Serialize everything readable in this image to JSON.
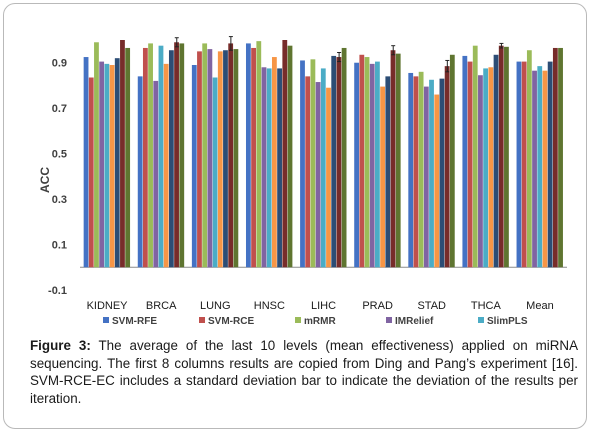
{
  "caption": {
    "label": "Figure 3:",
    "text": "The average of the last 10 levels (mean effectiveness) applied on miRNA sequencing. The first 8 columns results are copied from Ding and Pang’s experiment [16]. SVM-RCE-EC includes a standard deviation bar to indicate the deviation of the results per iteration."
  },
  "chart_data": {
    "type": "bar",
    "ylabel": "ACC",
    "xlabel": "",
    "ylim": [
      -0.1,
      1.0
    ],
    "yticks": [
      -0.1,
      0.1,
      0.3,
      0.5,
      0.7,
      0.9
    ],
    "grid": false,
    "legend_position": "bottom",
    "categories": [
      "KIDNEY",
      "BRCA",
      "LUNG",
      "HNSC",
      "LIHC",
      "PRAD",
      "STAD",
      "THCA",
      "Mean"
    ],
    "series": [
      {
        "name": "SVM-RFE",
        "color": "#4472c4",
        "values": [
          0.925,
          0.84,
          0.89,
          0.985,
          0.91,
          0.9,
          0.855,
          0.93,
          0.905
        ]
      },
      {
        "name": "SVM-RCE",
        "color": "#c0504d",
        "values": [
          0.835,
          0.965,
          0.95,
          0.965,
          0.84,
          0.935,
          0.84,
          0.905,
          0.905
        ]
      },
      {
        "name": "mRMR",
        "color": "#9bbb59",
        "values": [
          0.99,
          0.985,
          0.985,
          0.995,
          0.915,
          0.925,
          0.86,
          0.975,
          0.955
        ]
      },
      {
        "name": "IMRelief",
        "color": "#8064a2",
        "values": [
          0.905,
          0.82,
          0.96,
          0.88,
          0.815,
          0.895,
          0.795,
          0.845,
          0.865
        ]
      },
      {
        "name": "SlimPLS",
        "color": "#4bacc6",
        "values": [
          0.895,
          0.975,
          0.835,
          0.875,
          0.875,
          0.905,
          0.825,
          0.875,
          0.885
        ]
      },
      {
        "name": "",
        "color": "#f79646",
        "values": [
          0.89,
          0.895,
          0.95,
          0.925,
          0.79,
          0.795,
          0.76,
          0.88,
          0.865
        ]
      },
      {
        "name": "",
        "color": "#2c4d75",
        "values": [
          0.92,
          0.955,
          0.955,
          0.875,
          0.93,
          0.84,
          0.83,
          0.935,
          0.905
        ]
      },
      {
        "name": "",
        "color": "#772c2a",
        "values": [
          1.0,
          0.99,
          0.985,
          1.0,
          0.925,
          0.955,
          0.885,
          0.975,
          0.965
        ]
      },
      {
        "name": "",
        "color": "#5f7530",
        "values": [
          0.965,
          0.985,
          0.96,
          0.975,
          0.965,
          0.94,
          0.935,
          0.97,
          0.965
        ]
      }
    ],
    "error_bars": {
      "series_index": 7,
      "half_widths": [
        0.0,
        0.02,
        0.03,
        0.0,
        0.02,
        0.02,
        0.025,
        0.01,
        0.0
      ]
    }
  }
}
